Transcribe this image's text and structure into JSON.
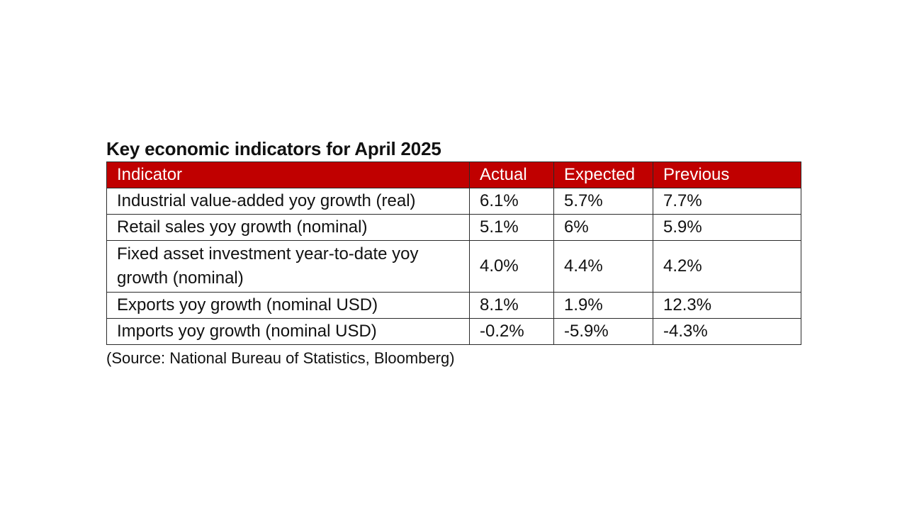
{
  "title": "Key economic indicators for April 2025",
  "table": {
    "headers": [
      "Indicator",
      "Actual",
      "Expected",
      "Previous"
    ],
    "rows": [
      [
        "Industrial value-added yoy growth (real)",
        "6.1%",
        "5.7%",
        "7.7%"
      ],
      [
        "Retail sales yoy growth (nominal)",
        "5.1%",
        "6%",
        "5.9%"
      ],
      [
        "Fixed asset investment year-to-date yoy growth (nominal)",
        "4.0%",
        "4.4%",
        "4.2%"
      ],
      [
        "Exports yoy growth (nominal USD)",
        "8.1%",
        "1.9%",
        "12.3%"
      ],
      [
        "Imports yoy growth (nominal USD)",
        "-0.2%",
        "-5.9%",
        "-4.3%"
      ]
    ]
  },
  "source": "(Source: National Bureau of Statistics, Bloomberg)",
  "colors": {
    "header_background": "#c00000",
    "header_text": "#ffffff",
    "border": "#2a2a2a"
  }
}
